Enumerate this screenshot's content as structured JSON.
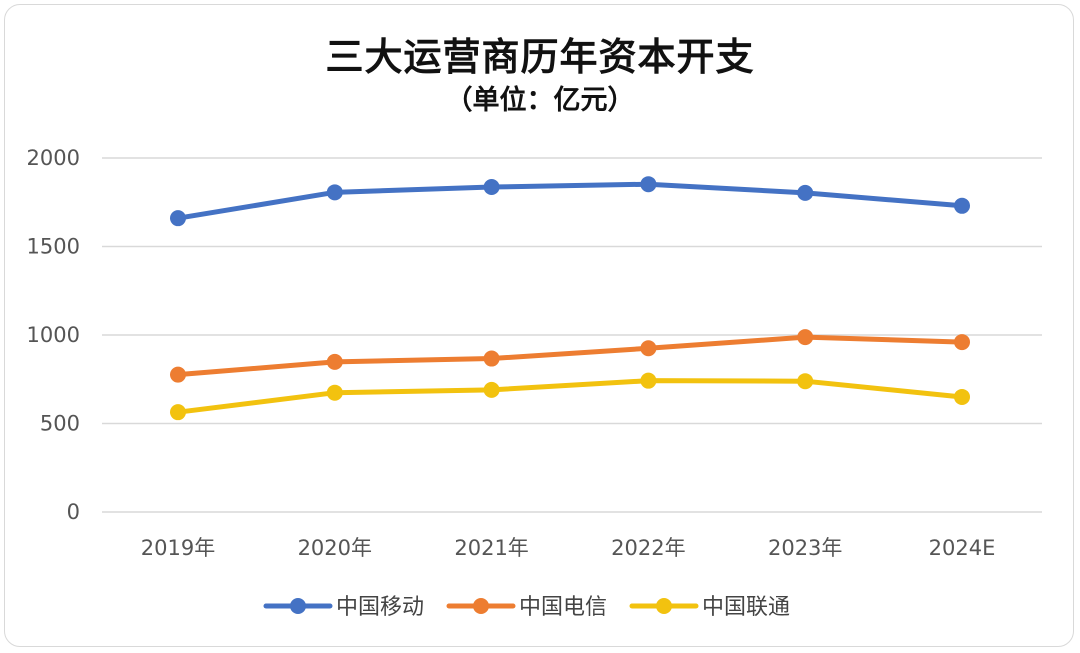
{
  "chart_data": {
    "type": "line",
    "title": "三大运营商历年资本开支",
    "subtitle": "（单位：亿元）",
    "categories": [
      "2019年",
      "2020年",
      "2021年",
      "2022年",
      "2023年",
      "2024E"
    ],
    "y_ticks": [
      "0",
      "500",
      "1000",
      "1500",
      "2000"
    ],
    "ylim": [
      0,
      2000
    ],
    "grid": true,
    "legend_position": "bottom",
    "series": [
      {
        "name": "中国移动",
        "color": "#4472C4",
        "values": [
          1660,
          1806,
          1836,
          1852,
          1803,
          1730
        ]
      },
      {
        "name": "中国电信",
        "color": "#ED7D31",
        "values": [
          776,
          848,
          867,
          925,
          988,
          960
        ]
      },
      {
        "name": "中国联通",
        "color": "#F2C20F",
        "values": [
          564,
          674,
          690,
          742,
          739,
          650
        ]
      }
    ]
  }
}
